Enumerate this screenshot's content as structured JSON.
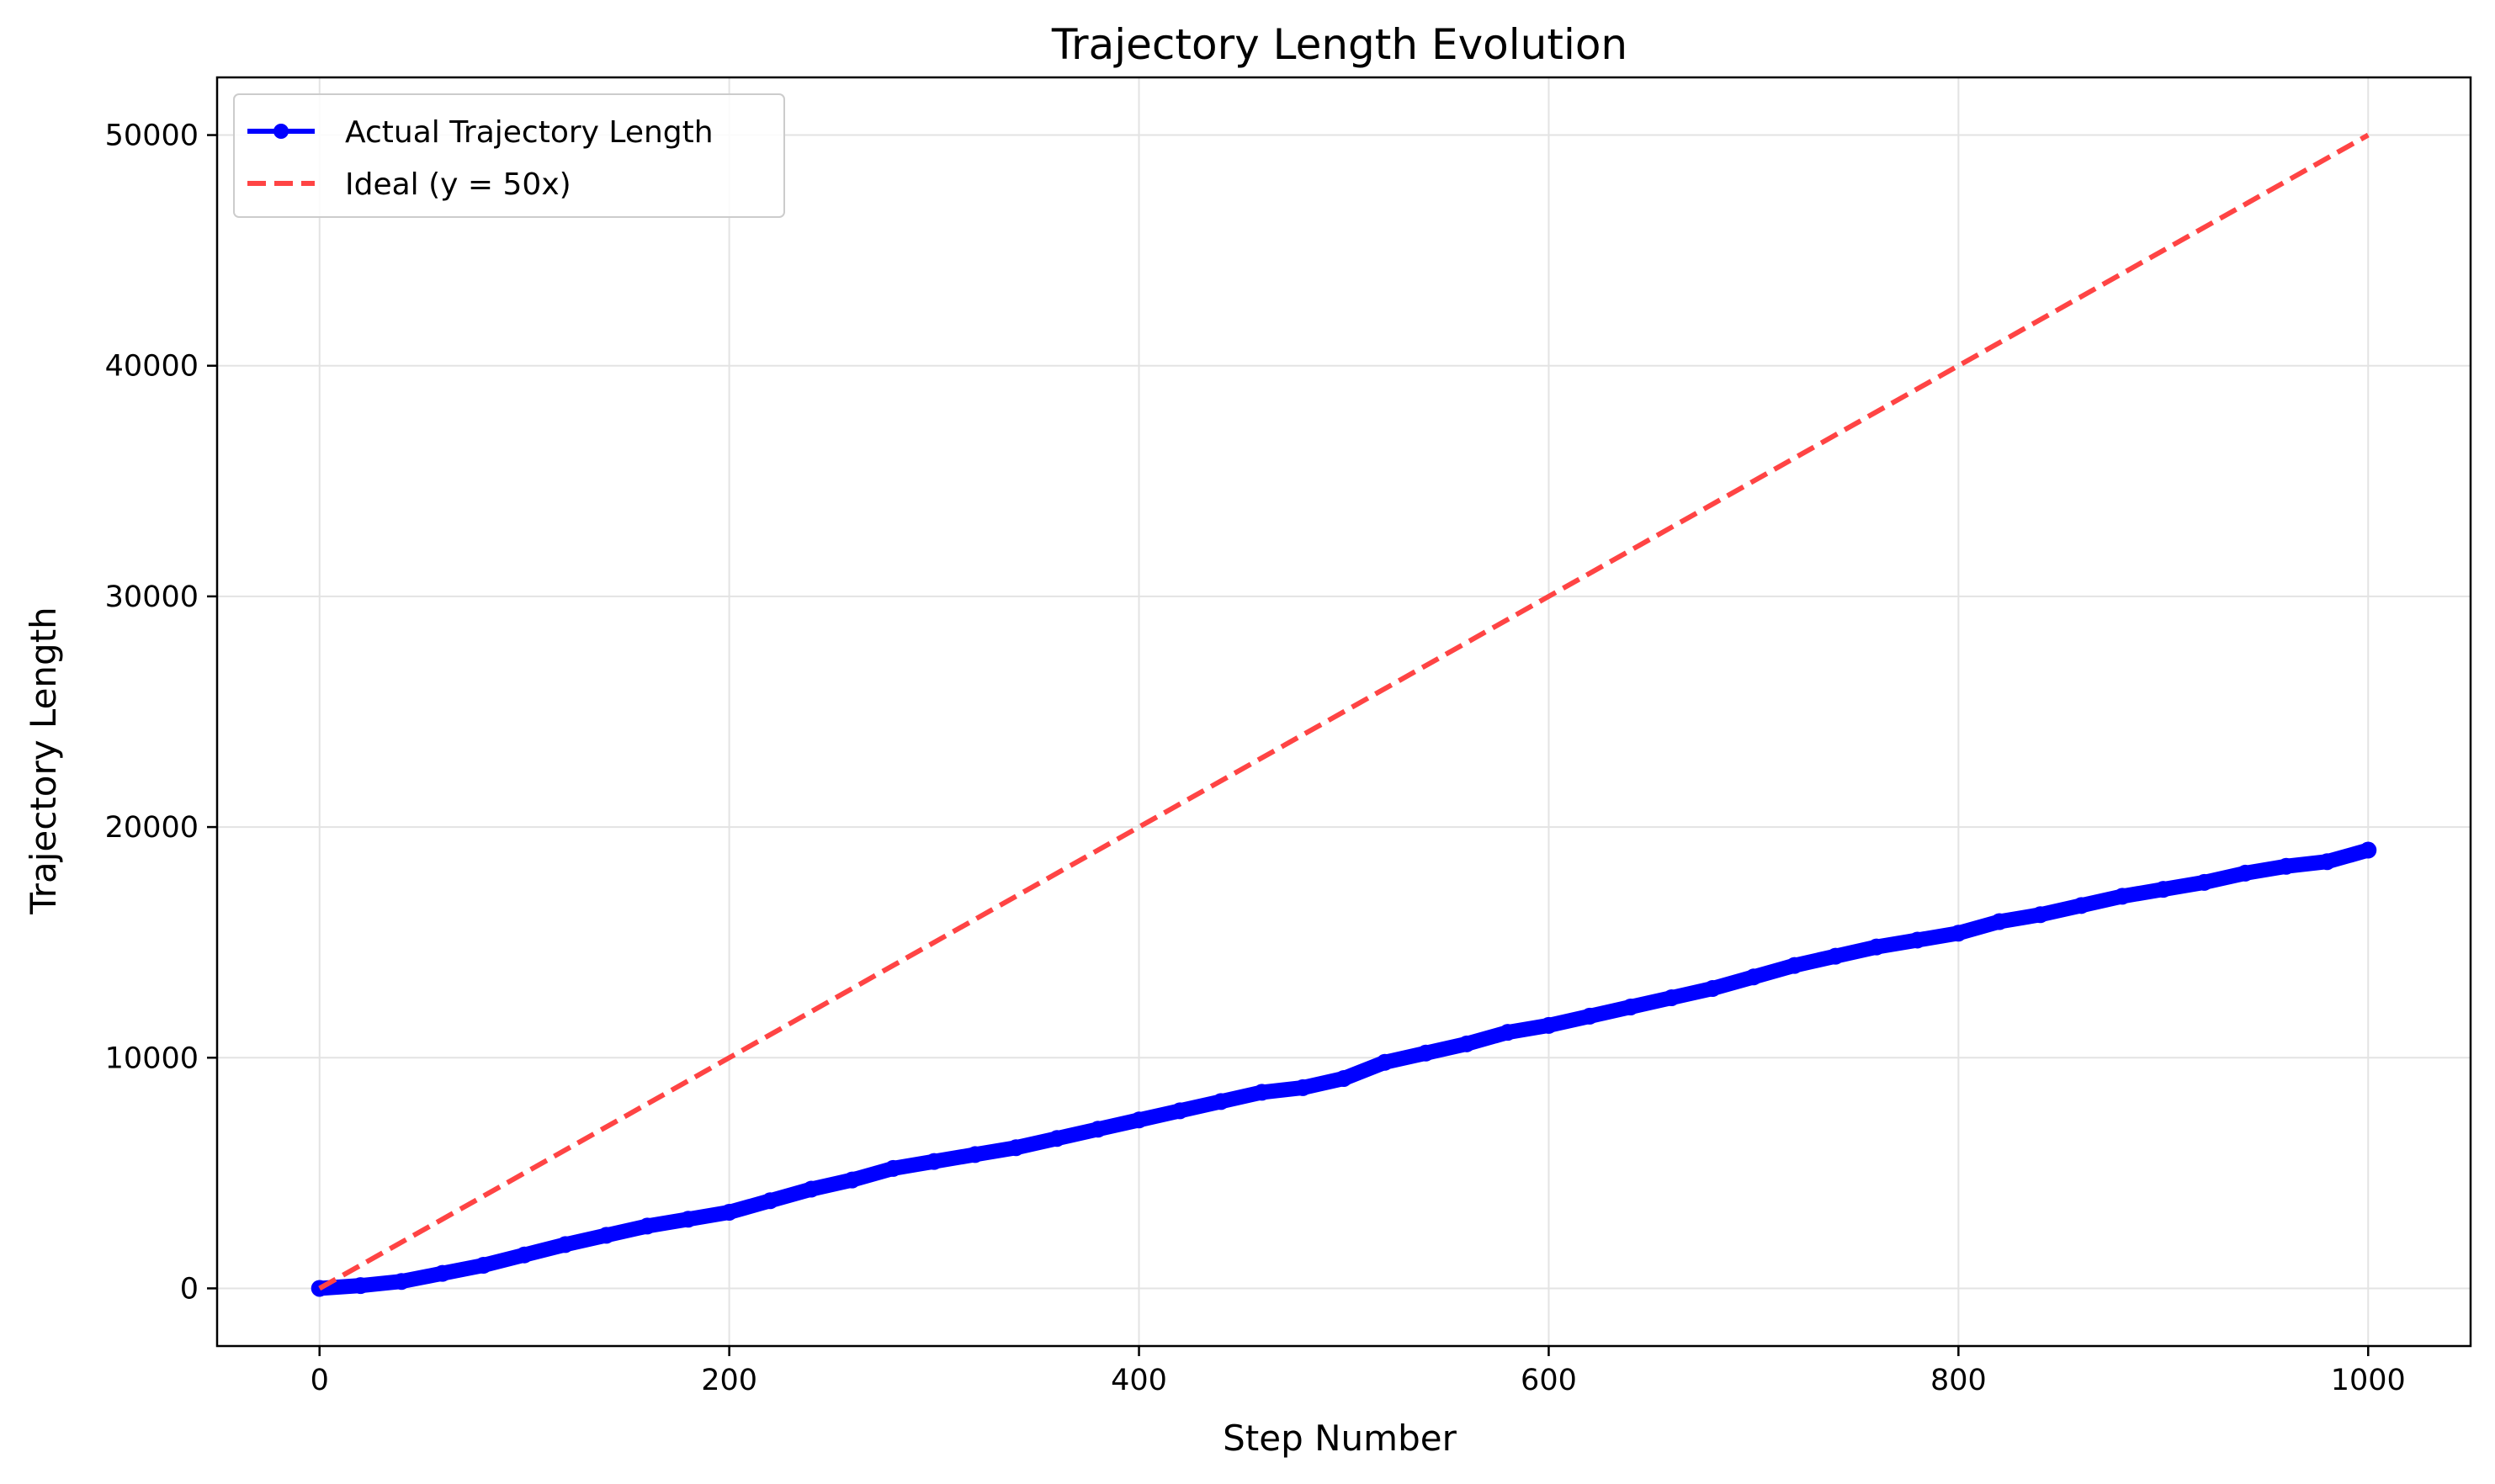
{
  "chart_data": {
    "type": "line",
    "title": "Trajectory Length Evolution",
    "xlabel": "Step Number",
    "ylabel": "Trajectory Length",
    "xlim": [
      -50,
      1050
    ],
    "ylim": [
      -2500,
      52500
    ],
    "xticks": [
      0,
      200,
      400,
      600,
      800,
      1000
    ],
    "yticks": [
      0,
      10000,
      20000,
      30000,
      40000,
      50000
    ],
    "xtick_labels": [
      "0",
      "200",
      "400",
      "600",
      "800",
      "1000"
    ],
    "ytick_labels": [
      "0",
      "10000",
      "20000",
      "30000",
      "40000",
      "50000"
    ],
    "grid": true,
    "legend_position": "top-left",
    "series": [
      {
        "name": "Actual Trajectory Length",
        "style": "solid-markers",
        "color": "#0000ff",
        "x": [
          0,
          20,
          40,
          60,
          80,
          100,
          120,
          140,
          160,
          180,
          200,
          220,
          240,
          260,
          280,
          300,
          320,
          340,
          360,
          380,
          400,
          420,
          440,
          460,
          480,
          500,
          520,
          540,
          560,
          580,
          600,
          620,
          640,
          660,
          680,
          700,
          720,
          740,
          760,
          780,
          800,
          820,
          840,
          860,
          880,
          900,
          920,
          940,
          960,
          980,
          1000
        ],
        "y": [
          0,
          120,
          300,
          650,
          1000,
          1450,
          1900,
          2300,
          2700,
          3000,
          3300,
          3800,
          4300,
          4700,
          5200,
          5500,
          5800,
          6100,
          6500,
          6900,
          7300,
          7700,
          8100,
          8500,
          8700,
          9100,
          9800,
          10200,
          10600,
          11100,
          11400,
          11800,
          12200,
          12600,
          13000,
          13500,
          14000,
          14400,
          14800,
          15100,
          15400,
          15900,
          16200,
          16600,
          17000,
          17300,
          17600,
          18000,
          18300,
          18500,
          19000
        ]
      },
      {
        "name": "Ideal (y = 50x)",
        "style": "dashed",
        "color": "#ff4444",
        "x": [
          0,
          1000
        ],
        "y": [
          0,
          50000
        ]
      }
    ]
  }
}
